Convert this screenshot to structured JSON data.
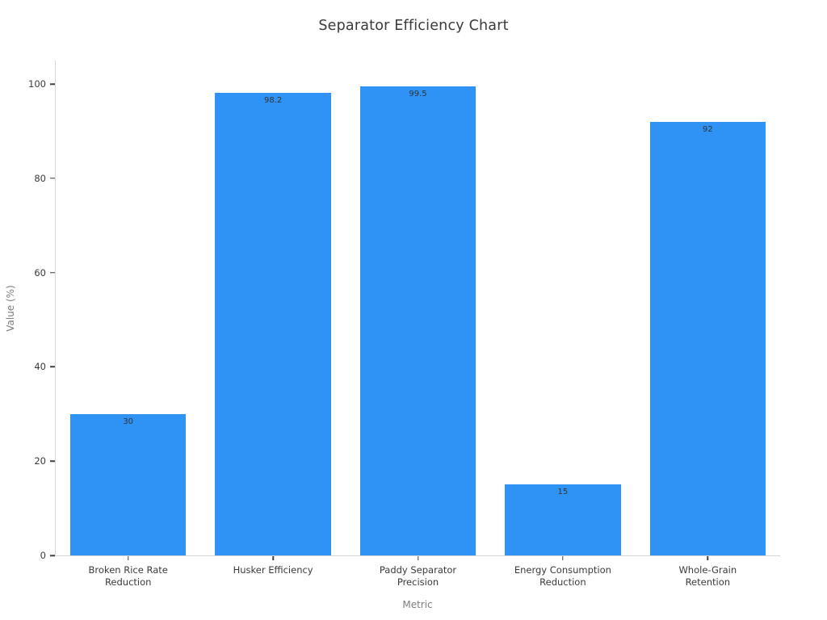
{
  "chart_data": {
    "type": "bar",
    "title": "Separator Efficiency Chart",
    "xlabel": "Metric",
    "ylabel": "Value (%)",
    "categories": [
      "Broken Rice Rate Reduction",
      "Husker Efficiency",
      "Paddy Separator Precision",
      "Energy Consumption Reduction",
      "Whole-Grain Retention"
    ],
    "tick_label_lines": [
      [
        "Broken Rice Rate",
        "Reduction"
      ],
      [
        "Husker Efficiency"
      ],
      [
        "Paddy Separator",
        "Precision"
      ],
      [
        "Energy Consumption",
        "Reduction"
      ],
      [
        "Whole-Grain",
        "Retention"
      ]
    ],
    "values": [
      30,
      98.2,
      99.5,
      15,
      92
    ],
    "value_labels": [
      "30",
      "98.2",
      "99.5",
      "15",
      "92"
    ],
    "yticks": [
      0,
      20,
      40,
      60,
      80,
      100
    ],
    "ylim": [
      0,
      105
    ],
    "bar_color": "#2e93f5",
    "bar_width_fraction": 0.8,
    "grid": false,
    "legend_position": "none"
  }
}
